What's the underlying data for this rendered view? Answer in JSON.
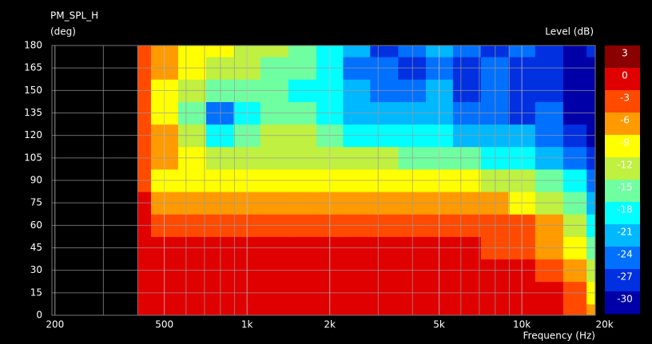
{
  "chart_data": {
    "type": "heatmap",
    "title": "PM_SPL_H",
    "y_label": "(deg)",
    "colorbar_label": "Level (dB)",
    "x_label": "Frequency (Hz)",
    "xscale": "log",
    "grid": true,
    "xlim": [
      195,
      18500
    ],
    "ylim": [
      0,
      180
    ],
    "xticks": [
      200,
      500,
      {
        "value": 1000,
        "label": "1k"
      },
      {
        "value": 2000,
        "label": "2k"
      },
      {
        "value": 5000,
        "label": "5k"
      },
      {
        "value": 10000,
        "label": "10k"
      },
      {
        "value": 20000,
        "label": "20k"
      }
    ],
    "xminor": [
      300,
      400,
      600,
      700,
      800,
      900,
      3000,
      4000,
      6000,
      7000,
      8000,
      9000
    ],
    "yticks": [
      0,
      15,
      30,
      45,
      60,
      75,
      90,
      105,
      120,
      135,
      150,
      165,
      180
    ],
    "levels": [
      3,
      0,
      -3,
      -6,
      -9,
      -12,
      -15,
      -18,
      -21,
      -24,
      -27,
      -30
    ],
    "level_colors": [
      "#8b0000",
      "#e00000",
      "#ff4a00",
      "#ff9a00",
      "#ffff00",
      "#c0f040",
      "#70ffa0",
      "#00ffff",
      "#00b8ff",
      "#0070ff",
      "#0030e0",
      "#0000a8"
    ],
    "x": [
      400,
      500,
      630,
      800,
      1000,
      1250,
      1600,
      2000,
      2500,
      3150,
      4000,
      5000,
      6300,
      8000,
      10000,
      12500,
      16000,
      18500
    ],
    "y": [
      0,
      15,
      30,
      45,
      60,
      75,
      90,
      105,
      120,
      135,
      150,
      165,
      180
    ],
    "z": [
      [
        -1,
        -1,
        -1,
        -1,
        -1,
        -1,
        -1,
        -1,
        -1,
        -1,
        -1,
        -1,
        -1,
        -1,
        -1,
        -1,
        -4,
        -7
      ],
      [
        -1,
        -1,
        -1,
        -1,
        -1,
        -1,
        -1,
        -1,
        -1,
        -1,
        -1,
        -1,
        -1,
        -1,
        -1,
        -1,
        -4,
        -10
      ],
      [
        -1,
        -1,
        -1,
        -1,
        -1,
        -1,
        -1,
        -1,
        -1,
        -1,
        -1,
        -1,
        -1,
        -1,
        -1,
        -4,
        -7,
        -13
      ],
      [
        -1,
        -1,
        -1,
        -1,
        -1,
        -1,
        -1,
        -1,
        -1,
        -1,
        -1,
        -1,
        -1,
        -4,
        -4,
        -7,
        -10,
        -16
      ],
      [
        -1,
        -4,
        -4,
        -4,
        -4,
        -4,
        -4,
        -4,
        -4,
        -4,
        -4,
        -4,
        -4,
        -4,
        -4,
        -7,
        -13,
        -19
      ],
      [
        -1,
        -7,
        -7,
        -7,
        -7,
        -7,
        -7,
        -7,
        -7,
        -7,
        -7,
        -7,
        -7,
        -7,
        -10,
        -13,
        -16,
        -22
      ],
      [
        -4,
        -10,
        -10,
        -10,
        -10,
        -10,
        -10,
        -10,
        -10,
        -10,
        -10,
        -10,
        -10,
        -13,
        -13,
        -16,
        -19,
        -25
      ],
      [
        -4,
        -7,
        -10,
        -13,
        -13,
        -13,
        -13,
        -13,
        -13,
        -13,
        -16,
        -16,
        -16,
        -19,
        -19,
        -22,
        -25,
        -28
      ],
      [
        -4,
        -7,
        -13,
        -19,
        -16,
        -13,
        -13,
        -16,
        -19,
        -19,
        -19,
        -19,
        -22,
        -22,
        -22,
        -25,
        -28,
        -31
      ],
      [
        -4,
        -10,
        -16,
        -25,
        -19,
        -16,
        -16,
        -19,
        -22,
        -22,
        -22,
        -22,
        -25,
        -25,
        -28,
        -25,
        -31,
        -31
      ],
      [
        -4,
        -10,
        -13,
        -16,
        -16,
        -16,
        -19,
        -19,
        -22,
        -25,
        -25,
        -22,
        -28,
        -25,
        -28,
        -28,
        -31,
        -31
      ],
      [
        -4,
        -7,
        -10,
        -13,
        -13,
        -16,
        -16,
        -19,
        -25,
        -25,
        -28,
        -25,
        -28,
        -25,
        -28,
        -28,
        -31,
        -31
      ],
      [
        -4,
        -7,
        -10,
        -10,
        -13,
        -13,
        -16,
        -19,
        -22,
        -28,
        -25,
        -22,
        -25,
        -28,
        -25,
        -28,
        -31,
        -28
      ]
    ]
  }
}
